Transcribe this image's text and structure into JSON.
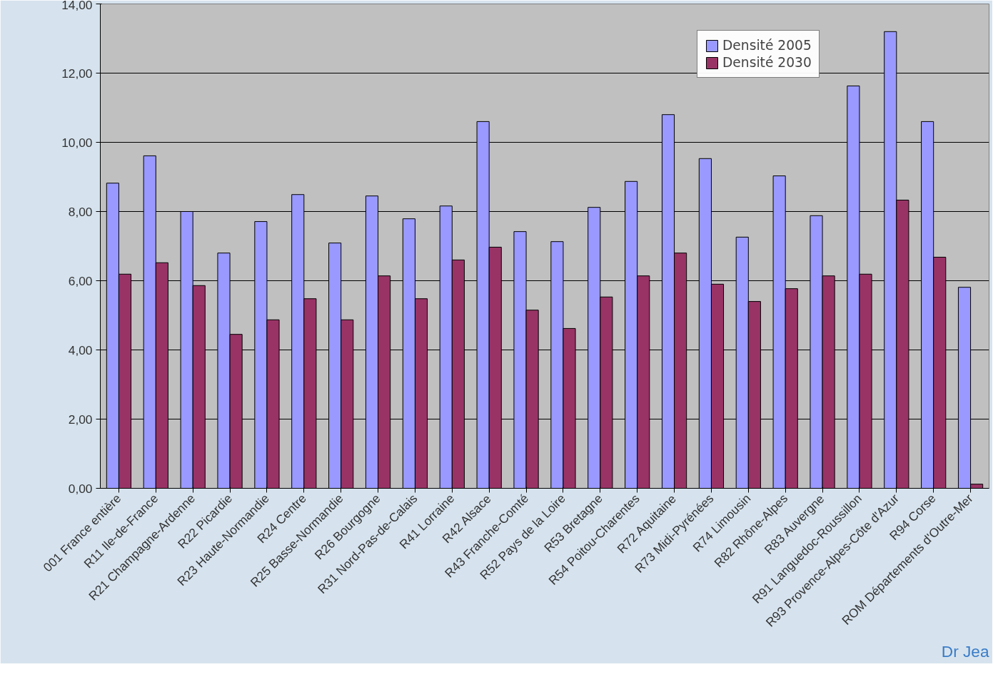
{
  "chart_data": {
    "type": "bar",
    "categories": [
      "001 France entière",
      "R11 Ile-de-France",
      "R21 Champagne-Ardenne",
      "R22 Picardie",
      "R23 Haute-Normandie",
      "R24 Centre",
      "R25 Basse-Normandie",
      "R26 Bourgogne",
      "R31 Nord-Pas-de-Calais",
      "R41 Lorraine",
      "R42 Alsace",
      "R43 Franche-Comté",
      "R52 Pays de la Loire",
      "R53 Bretagne",
      "R54 Poitou-Charentes",
      "R72 Aquitaine",
      "R73 Midi-Pyrénées",
      "R74 Limousin",
      "R82 Rhône-Alpes",
      "R83 Auvergne",
      "R91 Languedoc-Roussillon",
      "R93 Provence-Alpes-Côte d'Azur",
      "R94 Corse",
      "ROM Départements d'Outre-Mer"
    ],
    "series": [
      {
        "name": "Densité 2005",
        "color": "#9999ff",
        "values": [
          8.82,
          9.61,
          8.0,
          6.8,
          7.71,
          8.49,
          7.09,
          8.45,
          7.79,
          8.16,
          10.6,
          7.42,
          7.13,
          8.12,
          8.87,
          10.8,
          9.53,
          7.26,
          9.03,
          7.88,
          11.63,
          13.2,
          10.6,
          5.81
        ]
      },
      {
        "name": "Densité 2030",
        "color": "#993366",
        "values": [
          6.19,
          6.52,
          5.86,
          4.45,
          4.87,
          5.48,
          4.87,
          6.14,
          5.48,
          6.6,
          6.97,
          5.15,
          4.62,
          5.53,
          6.14,
          6.8,
          5.9,
          5.4,
          5.77,
          6.14,
          6.19,
          8.33,
          6.68,
          0.12
        ]
      }
    ],
    "ylim": [
      0,
      14
    ],
    "yticks": [
      {
        "value": 0,
        "label": "0,00"
      },
      {
        "value": 2,
        "label": "2,00"
      },
      {
        "value": 4,
        "label": "4,00"
      },
      {
        "value": 6,
        "label": "6,00"
      },
      {
        "value": 8,
        "label": "8,00"
      },
      {
        "value": 10,
        "label": "10,00"
      },
      {
        "value": 12,
        "label": "12,00"
      },
      {
        "value": 14,
        "label": "14,00"
      }
    ],
    "grid": "y",
    "legend": "top right",
    "annotations": [
      "Dr Jea"
    ]
  }
}
